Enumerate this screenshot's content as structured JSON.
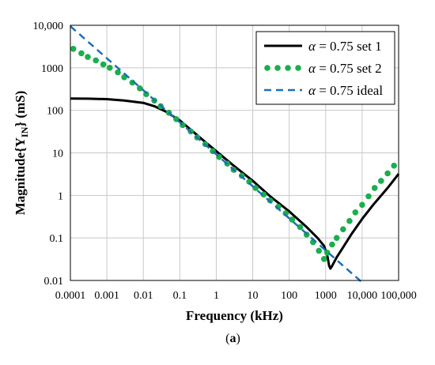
{
  "chart_data": {
    "type": "line",
    "x_scale": "log",
    "y_scale": "log",
    "xlim": [
      0.0001,
      100000
    ],
    "ylim": [
      0.01,
      10000
    ],
    "grid": true,
    "legend_position": "top-right",
    "xlabel": "Frequency (kHz)",
    "ylabel": {
      "prefix": "Magnitude{Y",
      "sub": "IN",
      "suffix": "} (mS)"
    },
    "subfigure_label": {
      "open": "(",
      "letter": "a",
      "close": ")"
    },
    "x_ticks": [
      {
        "value": 0.0001,
        "label": "0.0001"
      },
      {
        "value": 0.001,
        "label": "0.001"
      },
      {
        "value": 0.01,
        "label": "0.01"
      },
      {
        "value": 0.1,
        "label": "0.1"
      },
      {
        "value": 1,
        "label": "1"
      },
      {
        "value": 10,
        "label": "10"
      },
      {
        "value": 100,
        "label": "100"
      },
      {
        "value": 1000,
        "label": "1000"
      },
      {
        "value": 10000,
        "label": "10,000"
      },
      {
        "value": 100000,
        "label": "100,000"
      }
    ],
    "y_ticks": [
      {
        "value": 10000,
        "label": "10,000"
      },
      {
        "value": 1000,
        "label": "1000"
      },
      {
        "value": 100,
        "label": "100"
      },
      {
        "value": 10,
        "label": "10"
      },
      {
        "value": 1,
        "label": "1"
      },
      {
        "value": 0.1,
        "label": "0.1"
      },
      {
        "value": 0.01,
        "label": "0.01"
      }
    ],
    "series": [
      {
        "name": "α = 0.75 set 1",
        "name_symbol": "α",
        "name_rest": " = 0.75 set 1",
        "style": "solid",
        "color": "#000000",
        "points": [
          [
            0.0001,
            190
          ],
          [
            0.0003,
            188
          ],
          [
            0.001,
            183
          ],
          [
            0.003,
            170
          ],
          [
            0.01,
            150
          ],
          [
            0.02,
            125
          ],
          [
            0.04,
            95
          ],
          [
            0.07,
            70
          ],
          [
            0.1,
            58
          ],
          [
            0.2,
            35
          ],
          [
            0.5,
            18
          ],
          [
            1,
            11
          ],
          [
            3,
            5
          ],
          [
            10,
            2.2
          ],
          [
            30,
            0.95
          ],
          [
            100,
            0.42
          ],
          [
            300,
            0.18
          ],
          [
            600,
            0.1
          ],
          [
            900,
            0.065
          ],
          [
            1100,
            0.04
          ],
          [
            1250,
            0.022
          ],
          [
            1350,
            0.019
          ],
          [
            1500,
            0.022
          ],
          [
            2000,
            0.035
          ],
          [
            3000,
            0.06
          ],
          [
            5000,
            0.12
          ],
          [
            10000,
            0.28
          ],
          [
            20000,
            0.6
          ],
          [
            50000,
            1.5
          ],
          [
            100000,
            3.2
          ]
        ]
      },
      {
        "name": "α = 0.75 set 2",
        "name_symbol": "α",
        "name_rest": " = 0.75 set 2",
        "style": "dotted",
        "color": "#1aae4c",
        "points": [
          [
            0.00012,
            2800
          ],
          [
            0.0002,
            2200
          ],
          [
            0.0003,
            1800
          ],
          [
            0.0005,
            1500
          ],
          [
            0.0008,
            1200
          ],
          [
            0.0012,
            1000
          ],
          [
            0.002,
            780
          ],
          [
            0.003,
            600
          ],
          [
            0.005,
            450
          ],
          [
            0.008,
            330
          ],
          [
            0.012,
            240
          ],
          [
            0.02,
            170
          ],
          [
            0.03,
            125
          ],
          [
            0.05,
            88
          ],
          [
            0.08,
            62
          ],
          [
            0.12,
            45
          ],
          [
            0.2,
            32
          ],
          [
            0.3,
            23
          ],
          [
            0.5,
            16
          ],
          [
            0.8,
            11
          ],
          [
            1.2,
            8
          ],
          [
            2,
            5.6
          ],
          [
            3,
            4
          ],
          [
            5,
            2.9
          ],
          [
            8,
            2.1
          ],
          [
            12,
            1.5
          ],
          [
            20,
            1.05
          ],
          [
            30,
            0.76
          ],
          [
            50,
            0.54
          ],
          [
            80,
            0.38
          ],
          [
            120,
            0.27
          ],
          [
            200,
            0.18
          ],
          [
            300,
            0.12
          ],
          [
            450,
            0.08
          ],
          [
            650,
            0.05
          ],
          [
            900,
            0.032
          ],
          [
            1100,
            0.045
          ],
          [
            1500,
            0.07
          ],
          [
            2000,
            0.1
          ],
          [
            3000,
            0.16
          ],
          [
            4500,
            0.25
          ],
          [
            6500,
            0.4
          ],
          [
            10000,
            0.6
          ],
          [
            15000,
            0.95
          ],
          [
            22000,
            1.5
          ],
          [
            33000,
            2.2
          ],
          [
            50000,
            3.3
          ],
          [
            75000,
            5
          ]
        ]
      },
      {
        "name": "α = 0.75 ideal",
        "name_symbol": "α",
        "name_rest": " = 0.75 ideal",
        "style": "dashed",
        "color": "#1f6fb4",
        "points": [
          [
            0.0001,
            9500
          ],
          [
            10000,
            0.009
          ]
        ]
      }
    ]
  }
}
